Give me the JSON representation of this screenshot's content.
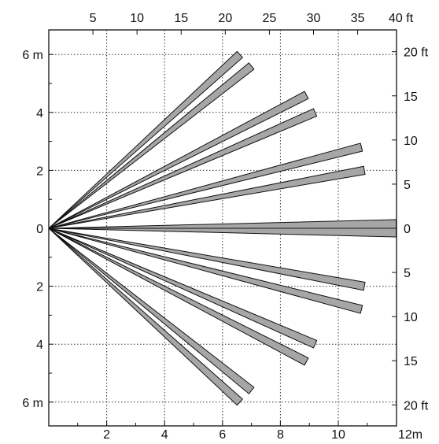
{
  "chart_data": {
    "type": "detection-pattern",
    "bottom_axis": {
      "unit": "m",
      "ticks": [
        "2",
        "4",
        "6",
        "8",
        "10"
      ],
      "end_label": "12m"
    },
    "top_axis": {
      "unit": "ft",
      "ticks": [
        "5",
        "10",
        "15",
        "20",
        "25",
        "30",
        "35"
      ],
      "end_label": "40 ft"
    },
    "left_axis": {
      "unit": "m",
      "upper": [
        "6 m",
        "4",
        "2"
      ],
      "zero": "0",
      "lower": [
        "2",
        "4",
        "6 m"
      ]
    },
    "right_axis": {
      "unit": "ft",
      "upper": [
        "20 ft",
        "15",
        "10",
        "5"
      ],
      "zero": "0",
      "lower": [
        "5",
        "10",
        "15",
        "20 ft"
      ]
    },
    "origin": {
      "x_m": 0,
      "y_m": 0
    },
    "zones": [
      {
        "end_x_m": 6.6,
        "end_y_m": 6.0
      },
      {
        "end_x_m": 7.0,
        "end_y_m": 5.6
      },
      {
        "end_x_m": 8.9,
        "end_y_m": 4.6
      },
      {
        "end_x_m": 9.2,
        "end_y_m": 4.0
      },
      {
        "end_x_m": 10.8,
        "end_y_m": 2.8
      },
      {
        "end_x_m": 10.9,
        "end_y_m": 2.0
      },
      {
        "end_x_m": 12.0,
        "end_y_m": 0.0,
        "half_width_m": 0.3
      },
      {
        "end_x_m": 10.9,
        "end_y_m": -2.0
      },
      {
        "end_x_m": 10.8,
        "end_y_m": -2.8
      },
      {
        "end_x_m": 9.2,
        "end_y_m": -4.0
      },
      {
        "end_x_m": 8.9,
        "end_y_m": -4.6
      },
      {
        "end_x_m": 7.0,
        "end_y_m": -5.6
      },
      {
        "end_x_m": 6.6,
        "end_y_m": -6.0
      }
    ]
  }
}
